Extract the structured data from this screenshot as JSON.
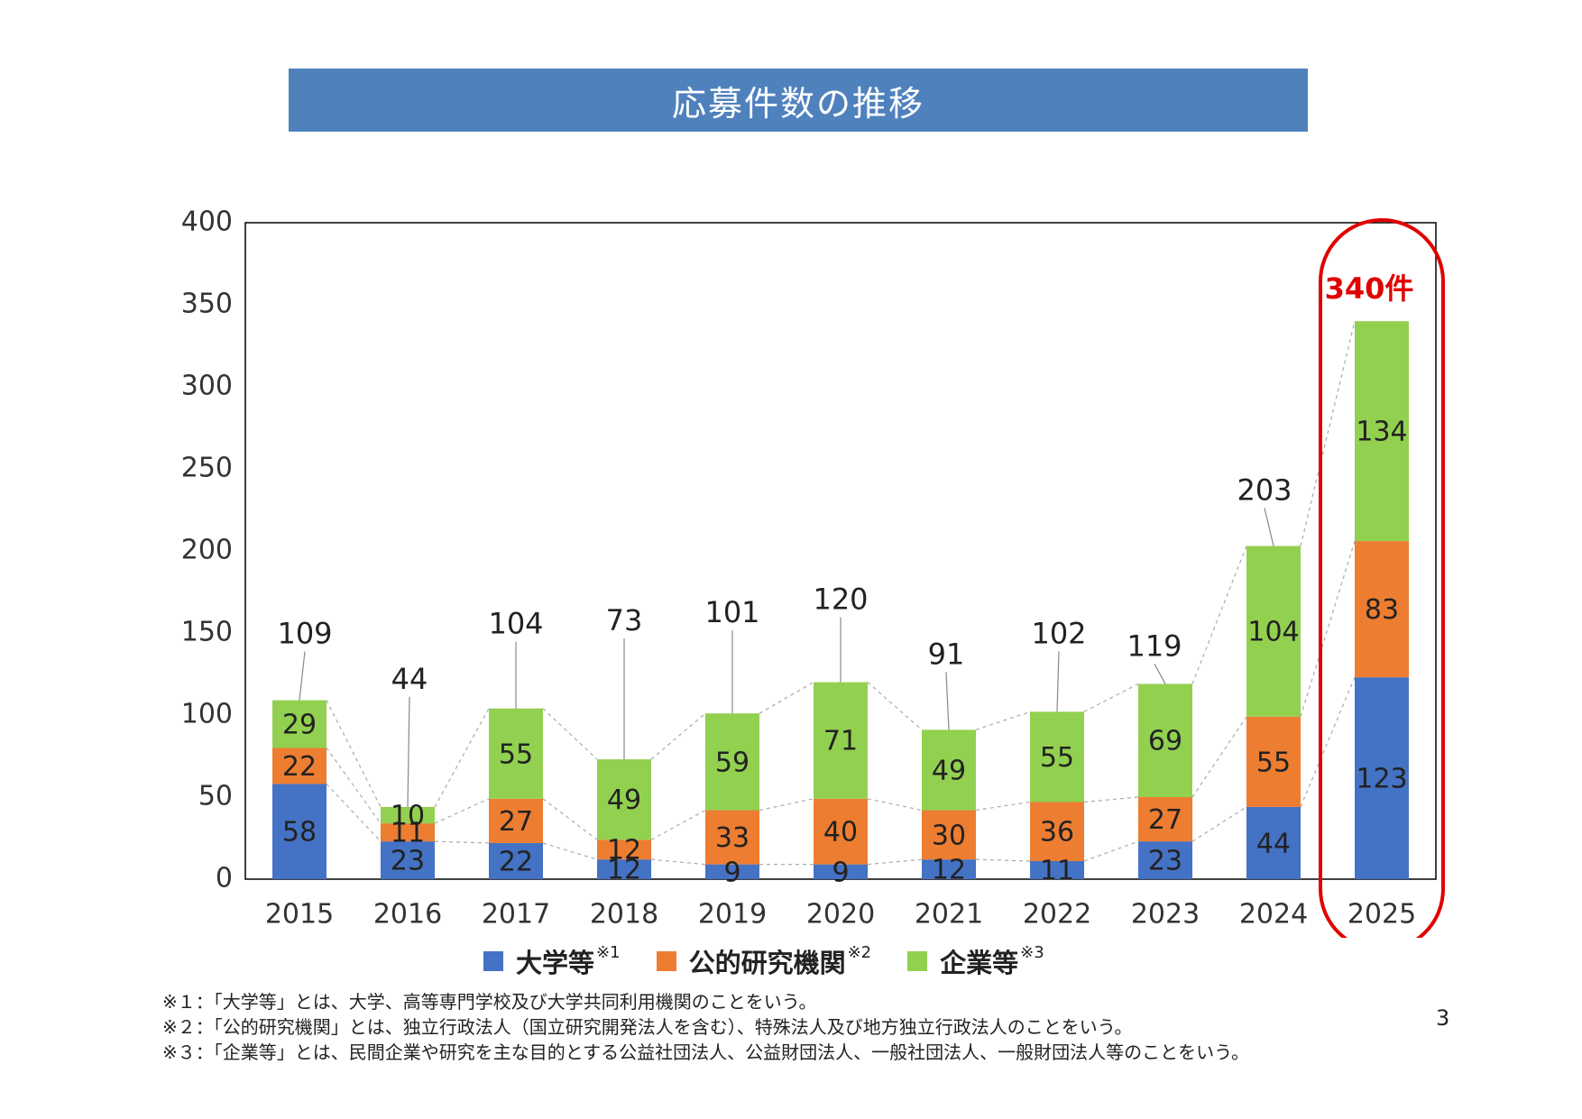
{
  "title": "応募件数の推移",
  "chart_data": {
    "type": "bar",
    "stacked": true,
    "categories": [
      "2015",
      "2016",
      "2017",
      "2018",
      "2019",
      "2020",
      "2021",
      "2022",
      "2023",
      "2024",
      "2025"
    ],
    "series": [
      {
        "name": "大学等",
        "color": "#4472c4",
        "values": [
          58,
          23,
          22,
          12,
          9,
          9,
          12,
          11,
          23,
          44,
          123
        ]
      },
      {
        "name": "公的研究機関",
        "color": "#ed7d31",
        "values": [
          22,
          11,
          27,
          12,
          33,
          40,
          30,
          36,
          27,
          55,
          83
        ]
      },
      {
        "name": "企業等",
        "color": "#92d050",
        "values": [
          29,
          10,
          55,
          49,
          59,
          71,
          49,
          55,
          69,
          104,
          134
        ]
      }
    ],
    "totals": [
      109,
      44,
      104,
      73,
      101,
      120,
      91,
      102,
      119,
      203,
      340
    ],
    "ylim": [
      0,
      400
    ],
    "yticks": [
      0,
      50,
      100,
      150,
      200,
      250,
      300,
      350,
      400
    ],
    "grid": false,
    "legend_position": "bottom",
    "highlight": {
      "category": "2025",
      "label": "340件",
      "color": "#e00000"
    }
  },
  "legend": [
    {
      "label": "大学等",
      "sup": "※1",
      "color": "#4472c4"
    },
    {
      "label": "公的研究機関",
      "sup": "※2",
      "color": "#ed7d31"
    },
    {
      "label": "企業等",
      "sup": "※3",
      "color": "#92d050"
    }
  ],
  "notes": [
    "※１：「大学等」とは、大学、高等専門学校及び大学共同利用機関のことをいう。",
    "※２：「公的研究機関」とは、独立行政法人（国立研究開発法人を含む）、特殊法人及び地方独立行政法人のことをいう。",
    "※３：「企業等」とは、民間企業や研究を主な目的とする公益社団法人、公益財団法人、一般社団法人、一般財団法人等のことをいう。"
  ],
  "page_number": "3"
}
